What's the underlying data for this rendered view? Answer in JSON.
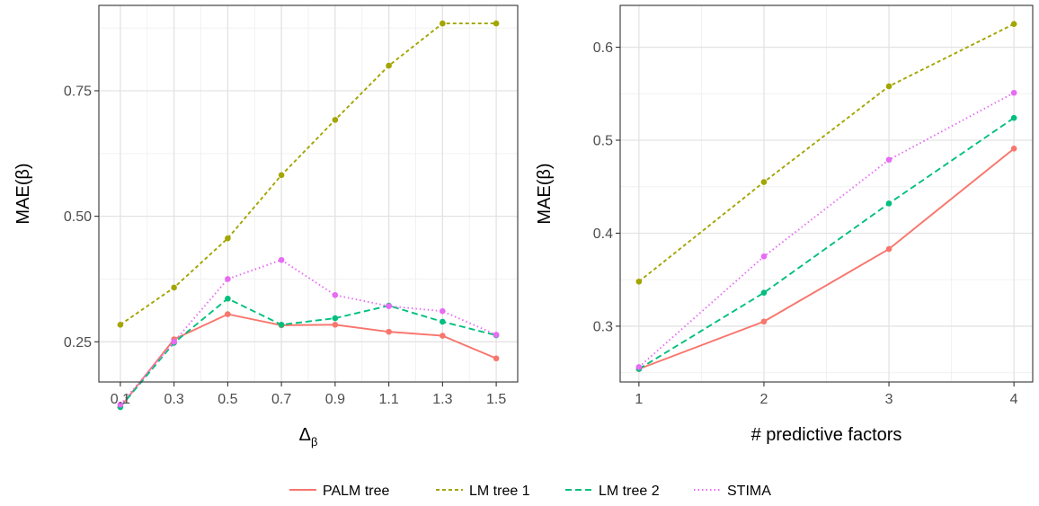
{
  "chart_data": [
    {
      "type": "line",
      "title": "",
      "xlabel": "Δ",
      "xlabel_sub": "β",
      "ylabel": "MAE(β)",
      "categories": [
        "0.1",
        "0.3",
        "0.5",
        "0.7",
        "0.9",
        "1.1",
        "1.3",
        "1.5"
      ],
      "x": [
        0.1,
        0.3,
        0.5,
        0.7,
        0.9,
        1.1,
        1.3,
        1.5
      ],
      "xlim": [
        0.02,
        1.58
      ],
      "ylim": [
        0.17,
        0.92
      ],
      "yticks": [
        0.25,
        0.5,
        0.75
      ],
      "ytick_labels": [
        "0.25",
        "0.50",
        "0.75"
      ],
      "grid": true,
      "series": [
        {
          "name": "PALM tree",
          "values": [
            0.12,
            0.255,
            0.305,
            0.283,
            0.284,
            0.27,
            0.262,
            0.217
          ]
        },
        {
          "name": "LM tree 1",
          "values": [
            0.284,
            0.358,
            0.456,
            0.582,
            0.692,
            0.8,
            0.884,
            0.884
          ]
        },
        {
          "name": "LM tree 2",
          "values": [
            0.12,
            0.248,
            0.336,
            0.284,
            0.297,
            0.322,
            0.29,
            0.263
          ]
        },
        {
          "name": "STIMA",
          "values": [
            0.125,
            0.25,
            0.375,
            0.413,
            0.343,
            0.321,
            0.311,
            0.264
          ]
        }
      ]
    },
    {
      "type": "line",
      "title": "",
      "xlabel": "# predictive factors",
      "xlabel_sub": "",
      "ylabel": "MAE(β)",
      "categories": [
        "1",
        "2",
        "3",
        "4"
      ],
      "x": [
        1,
        2,
        3,
        4
      ],
      "xlim": [
        0.85,
        4.15
      ],
      "ylim": [
        0.24,
        0.645
      ],
      "yticks": [
        0.3,
        0.4,
        0.5,
        0.6
      ],
      "ytick_labels": [
        "0.3",
        "0.4",
        "0.5",
        "0.6"
      ],
      "grid": true,
      "series": [
        {
          "name": "PALM tree",
          "values": [
            0.254,
            0.305,
            0.383,
            0.491
          ]
        },
        {
          "name": "LM tree 1",
          "values": [
            0.348,
            0.455,
            0.558,
            0.625
          ]
        },
        {
          "name": "LM tree 2",
          "values": [
            0.254,
            0.336,
            0.432,
            0.524
          ]
        },
        {
          "name": "STIMA",
          "values": [
            0.256,
            0.375,
            0.479,
            0.551
          ]
        }
      ]
    }
  ],
  "legend": {
    "position": "bottom",
    "items": [
      {
        "name": "PALM tree",
        "color": "#F8766D",
        "dash": "solid"
      },
      {
        "name": "LM tree 1",
        "color": "#A3A500",
        "dash": "short-dash"
      },
      {
        "name": "LM tree 2",
        "color": "#00BF7D",
        "dash": "dash"
      },
      {
        "name": "STIMA",
        "color": "#E76BF3",
        "dash": "dotted"
      }
    ]
  }
}
